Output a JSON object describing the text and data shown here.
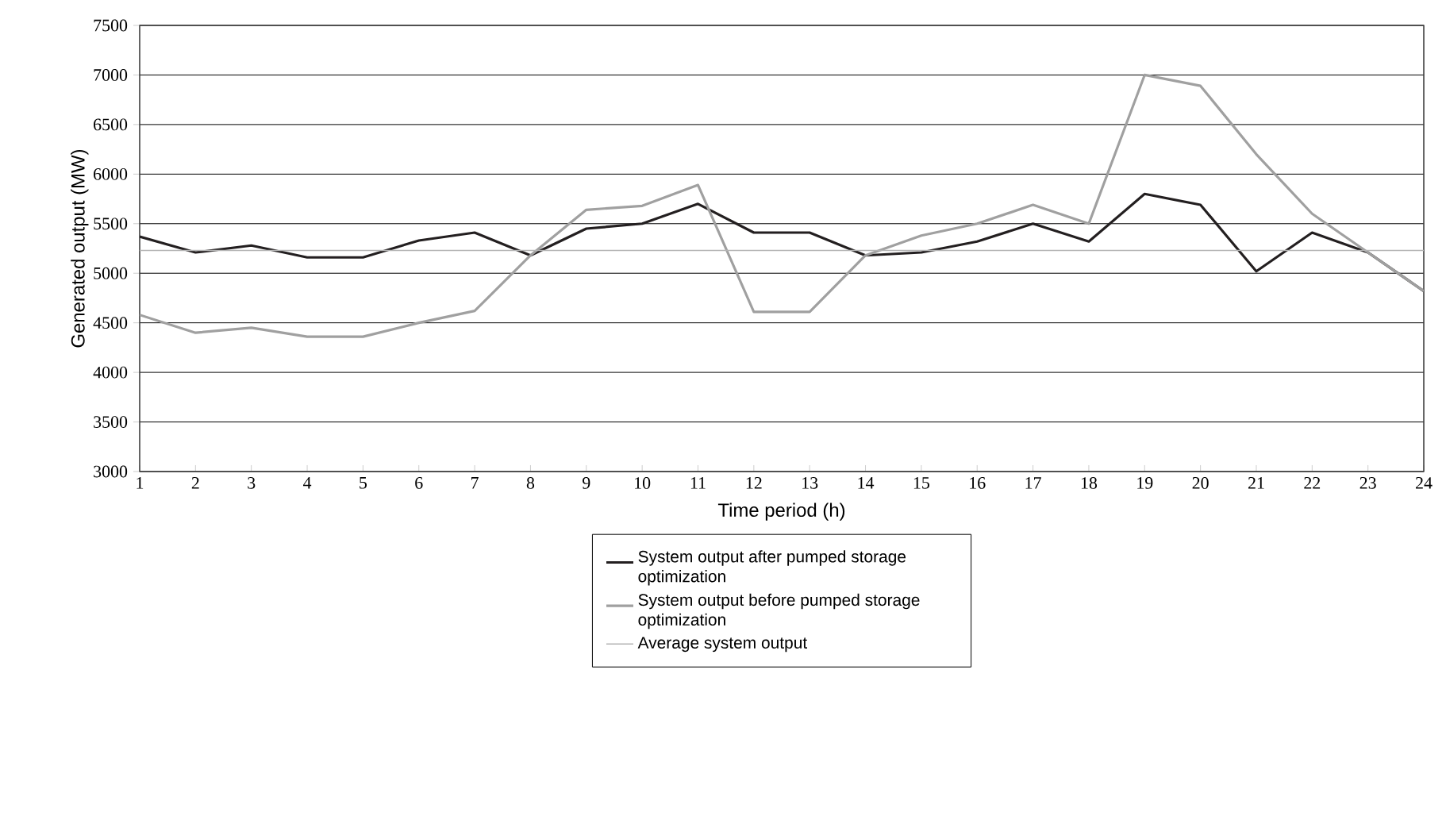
{
  "chart_data": {
    "type": "line",
    "xlabel": "Time period (h)",
    "ylabel": "Generated output (MW)",
    "x": [
      1,
      2,
      3,
      4,
      5,
      6,
      7,
      8,
      9,
      10,
      11,
      12,
      13,
      14,
      15,
      16,
      17,
      18,
      19,
      20,
      21,
      22,
      23,
      24
    ],
    "xlim": [
      1,
      24
    ],
    "xticks": [
      1,
      2,
      3,
      4,
      5,
      6,
      7,
      8,
      9,
      10,
      11,
      12,
      13,
      14,
      15,
      16,
      17,
      18,
      19,
      20,
      21,
      22,
      23,
      24
    ],
    "ylim": [
      3000,
      7500
    ],
    "yticks": [
      3000,
      3500,
      4000,
      4500,
      5000,
      5500,
      6000,
      6500,
      7000,
      7500
    ],
    "grid": "y",
    "legend": "bottom",
    "marker": "none",
    "line_style": "solid",
    "series": [
      {
        "name": "System output after pumped storage optimization",
        "color": "#231f20",
        "values": [
          5370,
          5210,
          5280,
          5160,
          5160,
          5330,
          5410,
          5180,
          5450,
          5500,
          5700,
          5410,
          5410,
          5180,
          5210,
          5320,
          5500,
          5320,
          5800,
          5690,
          5020,
          5410,
          5210,
          4820
        ]
      },
      {
        "name": "System output before pumped storage optimization",
        "color": "#a0a0a0",
        "values": [
          4580,
          4400,
          4450,
          4360,
          4360,
          4500,
          4620,
          5180,
          5640,
          5680,
          5890,
          4610,
          4610,
          5180,
          5380,
          5500,
          5690,
          5500,
          7000,
          6890,
          6200,
          5600,
          5210,
          4820
        ]
      }
    ],
    "ref_lines": [
      {
        "axis": "y",
        "value": 5230,
        "label": "Average system output",
        "color": "#b4b4b4",
        "line_style": "solid"
      }
    ]
  }
}
